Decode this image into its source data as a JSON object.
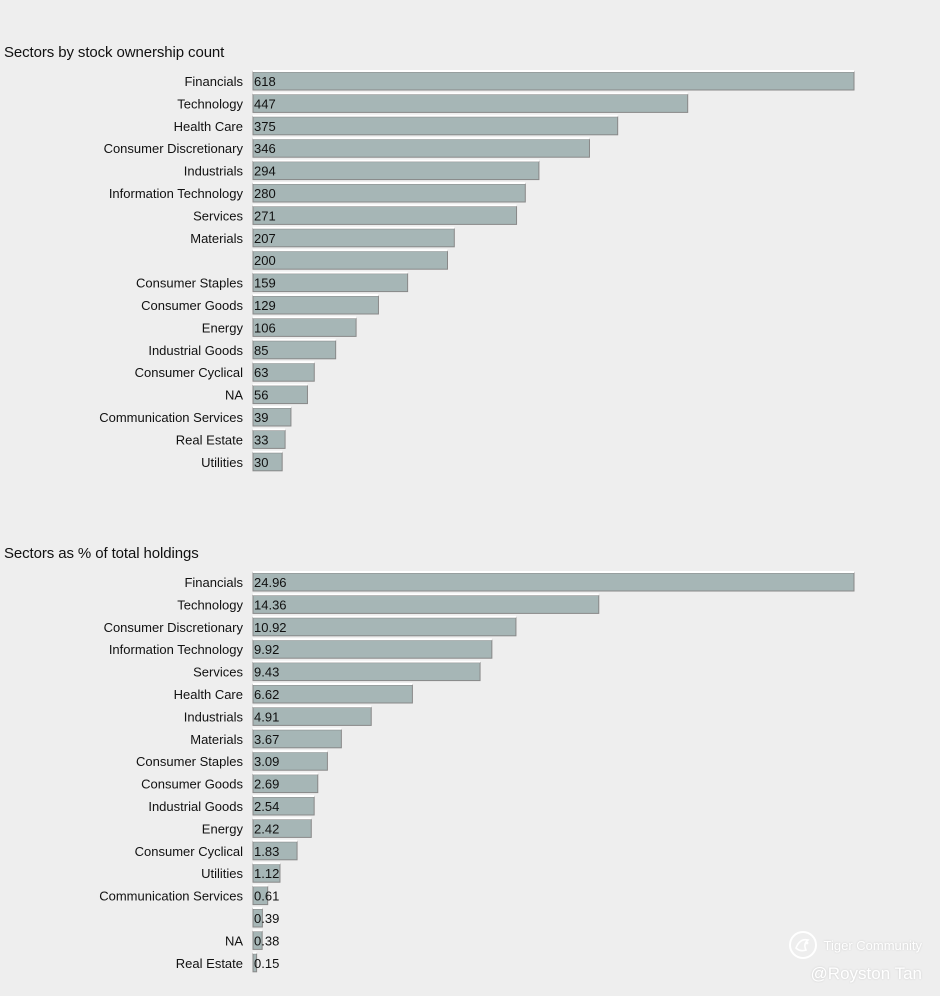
{
  "chart_data": [
    {
      "type": "bar",
      "orientation": "horizontal",
      "title": "Sectors by stock ownership count",
      "categories": [
        "Financials",
        "Technology",
        "Health Care",
        "Consumer Discretionary",
        "Industrials",
        "Information Technology",
        "Services",
        "Materials",
        "",
        "Consumer Staples",
        "Consumer Goods",
        "Energy",
        "Industrial Goods",
        "Consumer Cyclical",
        "NA",
        "Communication Services",
        "Real Estate",
        "Utilities"
      ],
      "values": [
        618,
        447,
        375,
        346,
        294,
        280,
        271,
        207,
        200,
        159,
        129,
        106,
        85,
        63,
        56,
        39,
        33,
        30
      ],
      "value_labels": [
        "618",
        "447",
        "375",
        "346",
        "294",
        "280",
        "271",
        "207",
        "200",
        "159",
        "129",
        "106",
        "85",
        "63",
        "56",
        "39",
        "33",
        "30"
      ],
      "xlim": [
        0,
        618
      ]
    },
    {
      "type": "bar",
      "orientation": "horizontal",
      "title": "Sectors as % of total holdings",
      "categories": [
        "Financials",
        "Technology",
        "Consumer Discretionary",
        "Information Technology",
        "Services",
        "Health Care",
        "Industrials",
        "Materials",
        "Consumer Staples",
        "Consumer Goods",
        "Industrial Goods",
        "Energy",
        "Consumer Cyclical",
        "Utilities",
        "Communication Services",
        "",
        "NA",
        "Real Estate"
      ],
      "values": [
        24.96,
        14.36,
        10.92,
        9.92,
        9.43,
        6.62,
        4.91,
        3.67,
        3.09,
        2.69,
        2.54,
        2.42,
        1.83,
        1.12,
        0.61,
        0.39,
        0.38,
        0.15
      ],
      "value_labels": [
        "24.96",
        "14.36",
        "10.92",
        "9.92",
        "9.43",
        "6.62",
        "4.91",
        "3.67",
        "3.09",
        "2.69",
        "2.54",
        "2.42",
        "1.83",
        "1.12",
        "0.61",
        "0.39",
        "0.38",
        "0.15"
      ],
      "xlim": [
        0,
        24.96
      ]
    }
  ],
  "watermark": {
    "brand": "Tiger Community",
    "user": "@Royston Tan"
  },
  "colors": {
    "bar": "#a6b6b6",
    "background": "#eeeeee"
  }
}
